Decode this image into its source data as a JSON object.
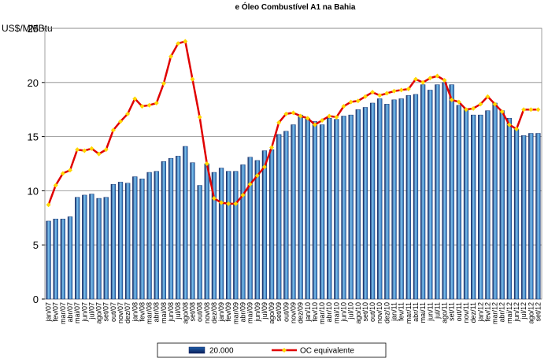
{
  "chart_data": {
    "type": "bar_line",
    "title": "e Óleo Combustível A1 na Bahia",
    "y_label": "US$/MMBtu",
    "categories": [
      "jan/07",
      "fev/07",
      "mar/07",
      "abr/07",
      "mai/07",
      "jun/07",
      "jul/07",
      "ago/07",
      "set/07",
      "out/07",
      "nov/07",
      "dez/07",
      "jan/08",
      "fev/08",
      "mar/08",
      "abr/08",
      "mai/08",
      "jun/08",
      "jul/08",
      "ago/08",
      "set/08",
      "out/08",
      "nov/08",
      "dez/08",
      "jan/09",
      "fev/09",
      "mar/09",
      "abr/09",
      "mai/09",
      "jun/09",
      "jul/09",
      "ago/09",
      "set/09",
      "out/09",
      "nov/09",
      "dez/09",
      "jan/10",
      "fev/10",
      "mar/10",
      "abr/10",
      "mai/10",
      "jun/10",
      "jul/10",
      "ago/10",
      "set/10",
      "out/10",
      "nov/10",
      "dez/10",
      "jan/11",
      "fev/11",
      "mar/11",
      "abr/11",
      "mai/11",
      "jun/11",
      "jul/11",
      "ago/11",
      "set/11",
      "out/11",
      "nov/11",
      "dez/11",
      "jan/12",
      "fev/12",
      "mar/12",
      "abr/12",
      "mai/12",
      "jun/12",
      "jul/12",
      "ago/12",
      "set/12"
    ],
    "series": [
      {
        "name": "20.000",
        "kind": "bar",
        "color": "#1f5fa8",
        "values": [
          7.2,
          7.4,
          7.4,
          7.6,
          9.4,
          9.6,
          9.7,
          9.3,
          9.4,
          10.6,
          10.8,
          10.7,
          11.3,
          11.1,
          11.7,
          11.8,
          12.7,
          13.0,
          13.2,
          14.1,
          12.6,
          10.5,
          12.5,
          11.7,
          12.1,
          11.8,
          11.8,
          12.4,
          13.1,
          12.8,
          13.7,
          13.8,
          15.2,
          15.5,
          16.1,
          17.0,
          16.7,
          16.4,
          16.1,
          16.7,
          16.6,
          16.9,
          17.0,
          17.5,
          17.7,
          18.1,
          18.5,
          18.0,
          18.4,
          18.5,
          18.8,
          18.9,
          19.8,
          19.3,
          19.8,
          20.0,
          19.8,
          17.9,
          17.6,
          17.0,
          17.0,
          17.4,
          18.1,
          17.4,
          16.7,
          15.7,
          15.1,
          15.3,
          15.3
        ]
      },
      {
        "name": "OC equivalente",
        "kind": "line",
        "color": "#e00000",
        "marker_color": "#ffd700",
        "values": [
          8.7,
          10.5,
          11.6,
          11.9,
          13.8,
          13.7,
          13.9,
          13.4,
          13.8,
          15.6,
          16.4,
          17.1,
          18.5,
          17.8,
          17.9,
          18.1,
          19.9,
          22.4,
          23.6,
          23.8,
          20.3,
          16.8,
          12.5,
          9.3,
          8.9,
          8.8,
          8.8,
          9.6,
          10.6,
          11.4,
          12.2,
          14.0,
          16.3,
          17.1,
          17.2,
          16.9,
          16.7,
          16.1,
          16.5,
          16.9,
          16.8,
          17.8,
          18.2,
          18.3,
          18.7,
          19.1,
          18.8,
          19.0,
          19.2,
          19.3,
          19.4,
          20.3,
          20.0,
          20.4,
          20.6,
          20.2,
          18.4,
          18.2,
          17.5,
          17.6,
          18.0,
          18.7,
          18.0,
          17.3,
          16.1,
          15.7,
          17.5,
          17.5,
          17.5
        ]
      }
    ],
    "ylim": [
      0,
      25
    ],
    "yticks": [
      0,
      5,
      10,
      15,
      20,
      25
    ],
    "grid": true
  }
}
